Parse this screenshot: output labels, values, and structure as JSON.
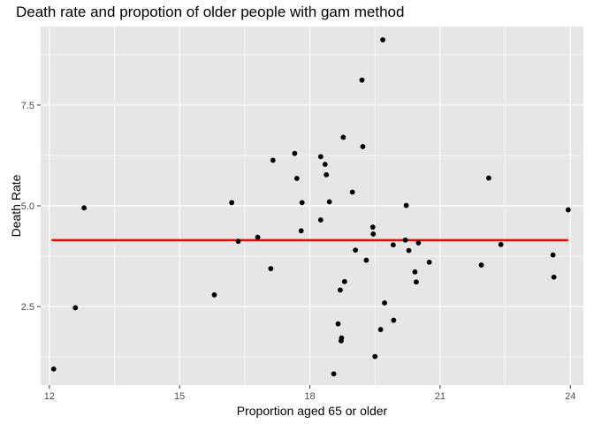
{
  "chart_data": {
    "type": "scatter",
    "title": "Death rate and propotion of older people with gam method",
    "xlabel": "Proportion aged 65 or older",
    "ylabel": "Death Rate",
    "xlim": [
      11.8,
      24.3
    ],
    "ylim": [
      0.55,
      9.45
    ],
    "x_ticks": [
      12,
      15,
      18,
      21,
      24
    ],
    "y_ticks": [
      2.5,
      5.0,
      7.5
    ],
    "x_tick_labels": [
      "12",
      "15",
      "18",
      "21",
      "24"
    ],
    "y_tick_labels": [
      "2.5",
      "5.0",
      "7.5"
    ],
    "grid": true,
    "legend": "none",
    "colors": {
      "panel": "#e6e6e6",
      "grid": "#ffffff",
      "points": "#000000",
      "fit_line": "#ff0000"
    },
    "points": [
      {
        "x": 12.1,
        "y": 0.95
      },
      {
        "x": 12.6,
        "y": 2.47
      },
      {
        "x": 12.8,
        "y": 4.95
      },
      {
        "x": 15.8,
        "y": 2.79
      },
      {
        "x": 16.2,
        "y": 5.08
      },
      {
        "x": 16.35,
        "y": 4.12
      },
      {
        "x": 16.8,
        "y": 4.22
      },
      {
        "x": 17.1,
        "y": 3.44
      },
      {
        "x": 17.15,
        "y": 6.13
      },
      {
        "x": 17.65,
        "y": 6.3
      },
      {
        "x": 17.7,
        "y": 5.68
      },
      {
        "x": 17.8,
        "y": 4.38
      },
      {
        "x": 17.82,
        "y": 5.08
      },
      {
        "x": 18.25,
        "y": 6.22
      },
      {
        "x": 18.25,
        "y": 4.65
      },
      {
        "x": 18.35,
        "y": 6.03
      },
      {
        "x": 18.38,
        "y": 5.77
      },
      {
        "x": 18.45,
        "y": 5.1
      },
      {
        "x": 18.55,
        "y": 0.83
      },
      {
        "x": 18.65,
        "y": 2.07
      },
      {
        "x": 18.7,
        "y": 2.91
      },
      {
        "x": 18.72,
        "y": 1.65
      },
      {
        "x": 18.73,
        "y": 1.72
      },
      {
        "x": 18.77,
        "y": 6.7
      },
      {
        "x": 18.8,
        "y": 3.12
      },
      {
        "x": 18.98,
        "y": 5.34
      },
      {
        "x": 19.05,
        "y": 3.9
      },
      {
        "x": 19.2,
        "y": 8.12
      },
      {
        "x": 19.22,
        "y": 6.47
      },
      {
        "x": 19.3,
        "y": 3.65
      },
      {
        "x": 19.45,
        "y": 4.47
      },
      {
        "x": 19.46,
        "y": 4.3
      },
      {
        "x": 19.5,
        "y": 1.26
      },
      {
        "x": 19.63,
        "y": 1.93
      },
      {
        "x": 19.68,
        "y": 9.12
      },
      {
        "x": 19.72,
        "y": 2.59
      },
      {
        "x": 19.92,
        "y": 4.03
      },
      {
        "x": 19.93,
        "y": 2.16
      },
      {
        "x": 20.2,
        "y": 4.15
      },
      {
        "x": 20.22,
        "y": 5.01
      },
      {
        "x": 20.28,
        "y": 3.89
      },
      {
        "x": 20.42,
        "y": 3.36
      },
      {
        "x": 20.45,
        "y": 3.11
      },
      {
        "x": 20.5,
        "y": 4.08
      },
      {
        "x": 20.75,
        "y": 3.6
      },
      {
        "x": 21.95,
        "y": 3.53
      },
      {
        "x": 22.12,
        "y": 5.69
      },
      {
        "x": 22.4,
        "y": 4.04
      },
      {
        "x": 23.6,
        "y": 3.78
      },
      {
        "x": 23.62,
        "y": 3.23
      },
      {
        "x": 23.95,
        "y": 4.9
      }
    ],
    "fit_line": {
      "x": [
        12.05,
        23.95
      ],
      "y": [
        4.15,
        4.15
      ]
    }
  }
}
